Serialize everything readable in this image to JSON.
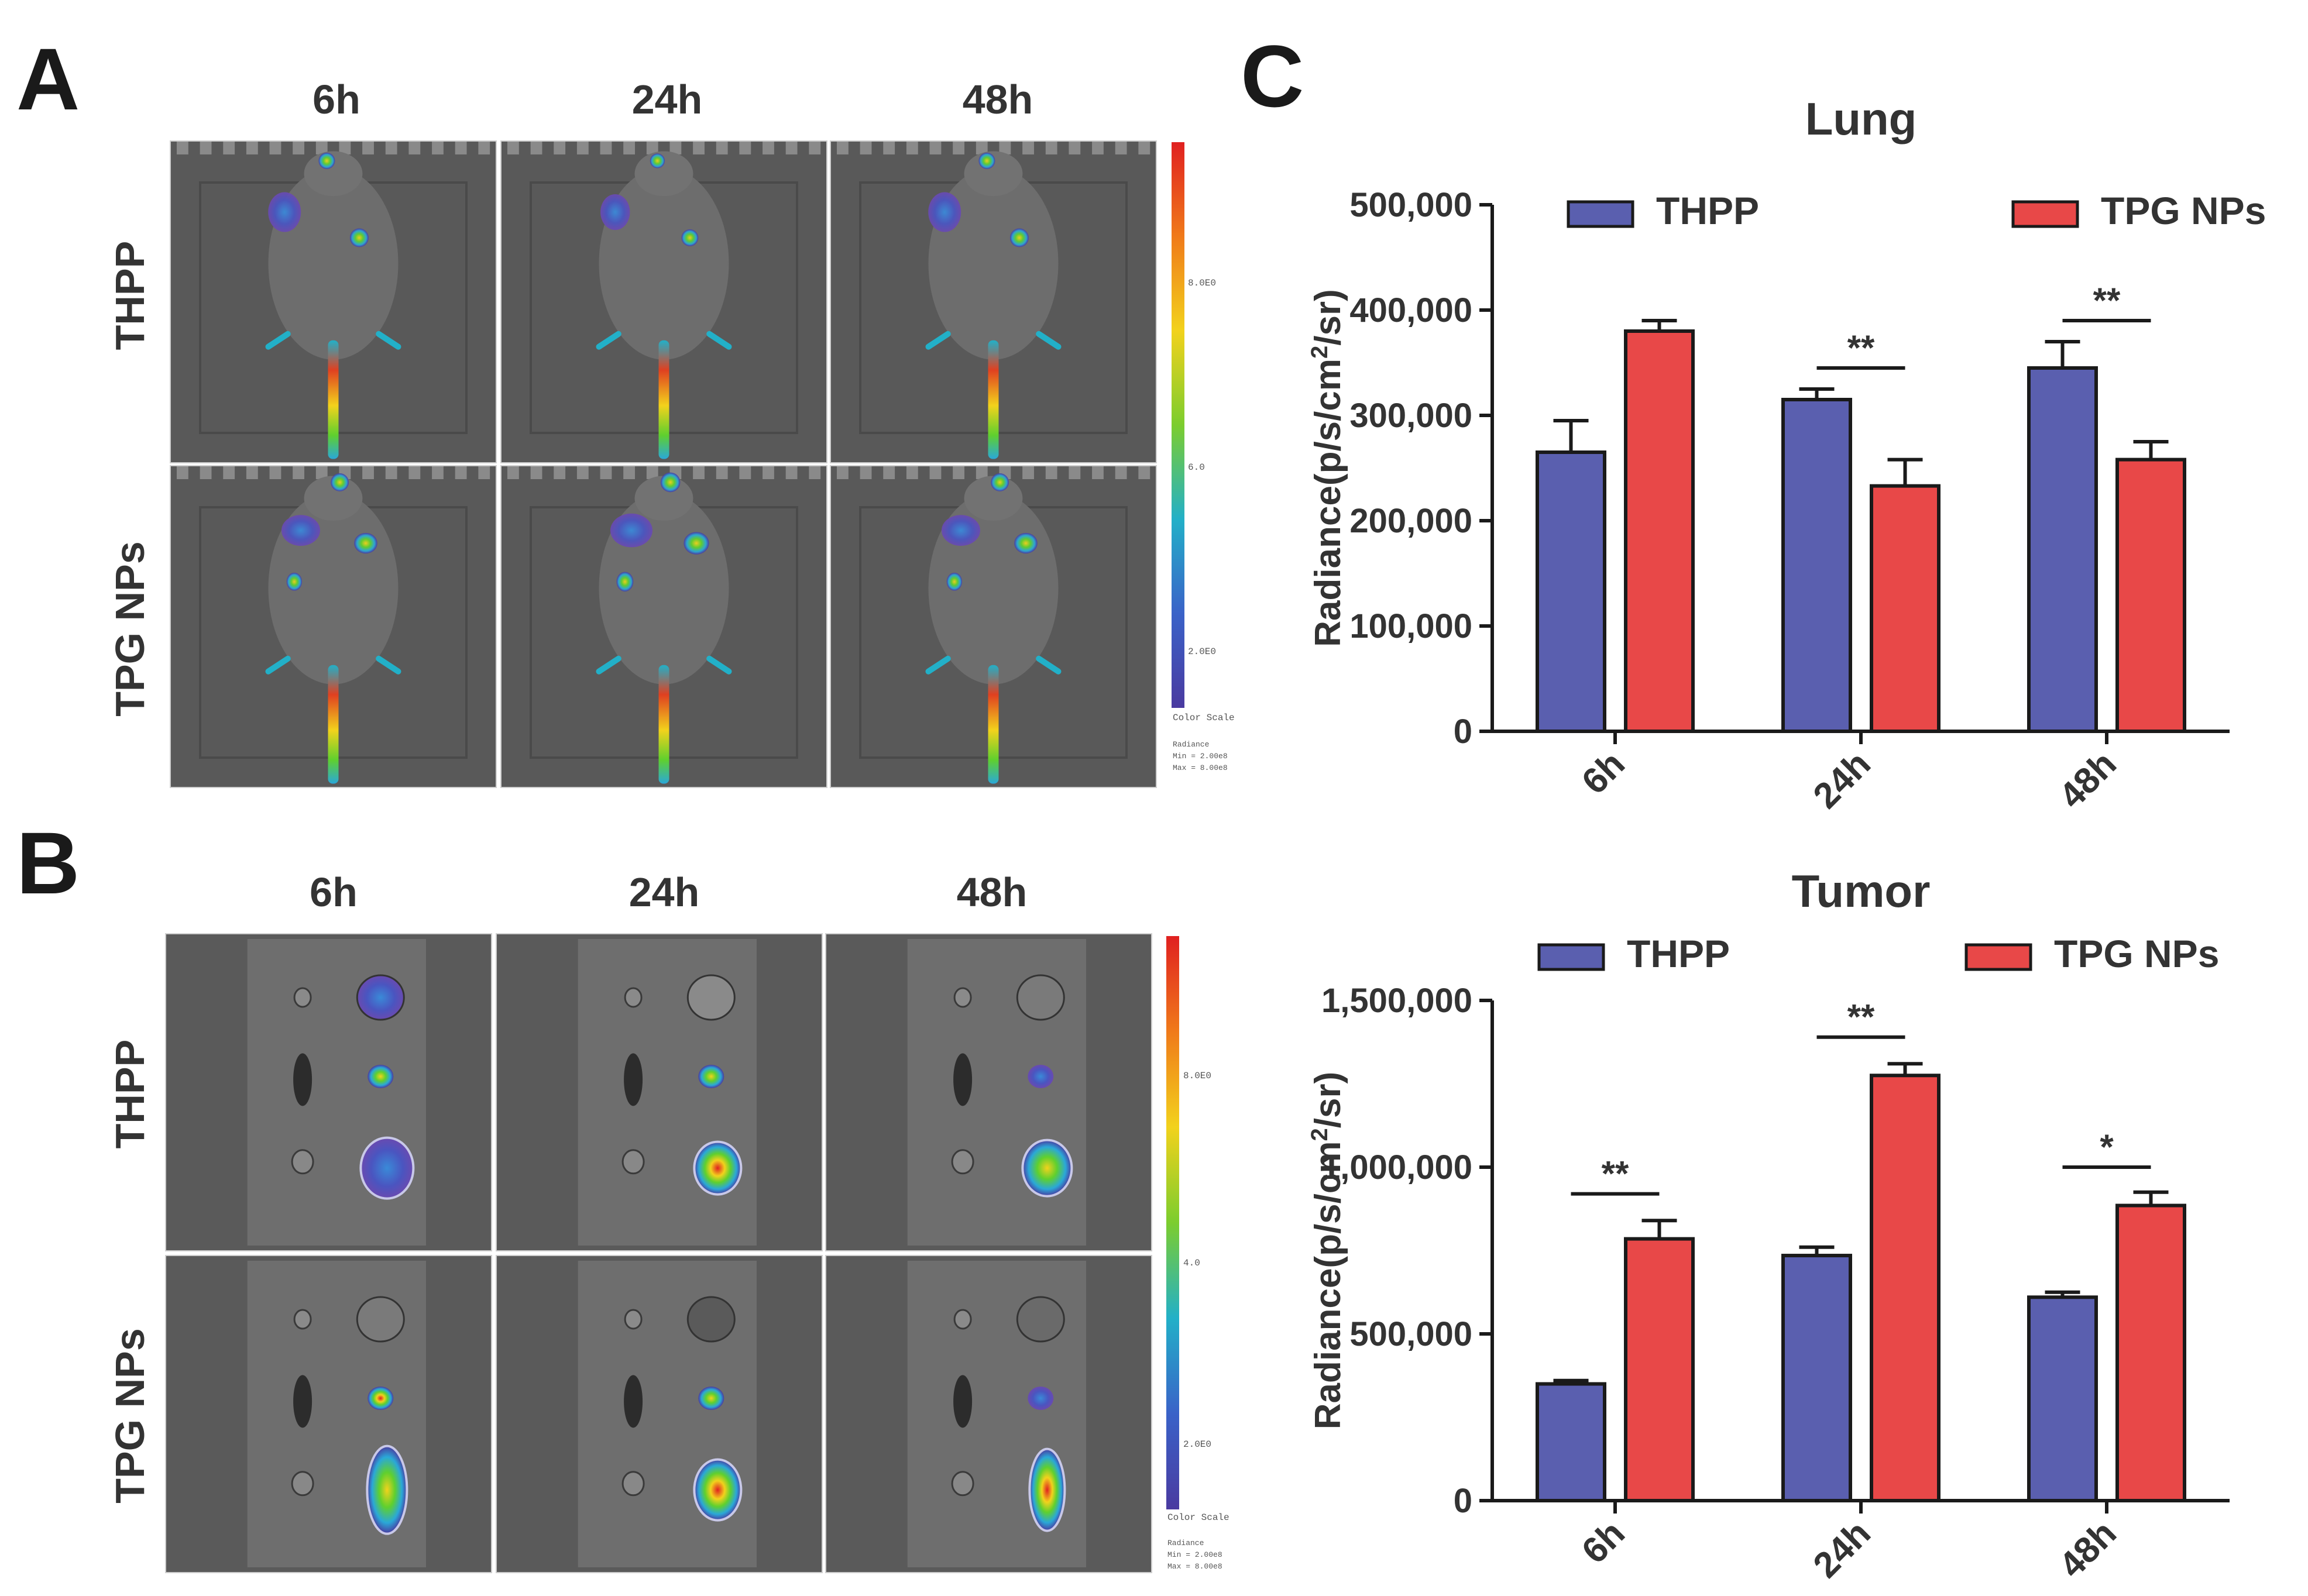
{
  "panel_letters": {
    "a": "A",
    "b": "B",
    "c": "C"
  },
  "imaging": {
    "timepoints": [
      "6h",
      "24h",
      "48h"
    ],
    "groups": [
      "THPP",
      "TPG NPs"
    ],
    "colorbar_labels": [
      "8.0E0",
      "6.0",
      "4.0",
      "2.0E0"
    ],
    "colorbar_units": "Color Scale",
    "colorbar_footer": [
      "Radiance",
      "Min = 2.00e8",
      "Max = 8.00e8"
    ]
  },
  "colors": {
    "thpp": "#5a5faf",
    "tpg": "#e84848",
    "axis": "#1a1a1a",
    "panel_bg": "#5b5b5b"
  },
  "chart_data": [
    {
      "type": "bar",
      "title": "Lung",
      "categories": [
        "6h",
        "24h",
        "48h"
      ],
      "series": [
        {
          "name": "THPP",
          "values": [
            265000,
            315000,
            345000
          ],
          "errors": [
            30000,
            10000,
            25000
          ]
        },
        {
          "name": "TPG NPs",
          "values": [
            380000,
            233000,
            258000
          ],
          "errors": [
            10000,
            25000,
            17000
          ]
        }
      ],
      "ylabel": "Radiance(p/s/cm²/sr)",
      "ylabel_main": "Radiance(p/s/cm",
      "ylabel_sup": "2",
      "ylabel_end": "/sr)",
      "ylim": [
        0,
        500000
      ],
      "yticks": [
        0,
        100000,
        200000,
        300000,
        400000,
        500000
      ],
      "ytick_labels": [
        "0",
        "100,000",
        "200,000",
        "300,000",
        "400,000",
        "500,000"
      ],
      "significance": [
        {
          "category_index": 1,
          "label": "**",
          "value": 345000
        },
        {
          "category_index": 2,
          "label": "**",
          "value": 390000
        }
      ],
      "legend_position": "top"
    },
    {
      "type": "bar",
      "title": "Tumor",
      "categories": [
        "6h",
        "24h",
        "48h"
      ],
      "series": [
        {
          "name": "THPP",
          "values": [
            350000,
            735000,
            610000
          ],
          "errors": [
            10000,
            25000,
            15000
          ]
        },
        {
          "name": "TPG NPs",
          "values": [
            785000,
            1275000,
            885000
          ],
          "errors": [
            55000,
            35000,
            40000
          ]
        }
      ],
      "ylabel": "Radiance(p/s/cm²/sr)",
      "ylabel_main": "Radiance(p/s/cm",
      "ylabel_sup": "2",
      "ylabel_end": "/sr)",
      "ylim": [
        0,
        1500000
      ],
      "yticks": [
        0,
        500000,
        1000000,
        1500000
      ],
      "ytick_labels": [
        "0",
        "500,000",
        "1,000,000",
        "1,500,000"
      ],
      "significance": [
        {
          "category_index": 0,
          "label": "**",
          "value": 920000
        },
        {
          "category_index": 1,
          "label": "**",
          "value": 1390000
        },
        {
          "category_index": 2,
          "label": "*",
          "value": 1000000
        }
      ],
      "legend_position": "top"
    }
  ]
}
